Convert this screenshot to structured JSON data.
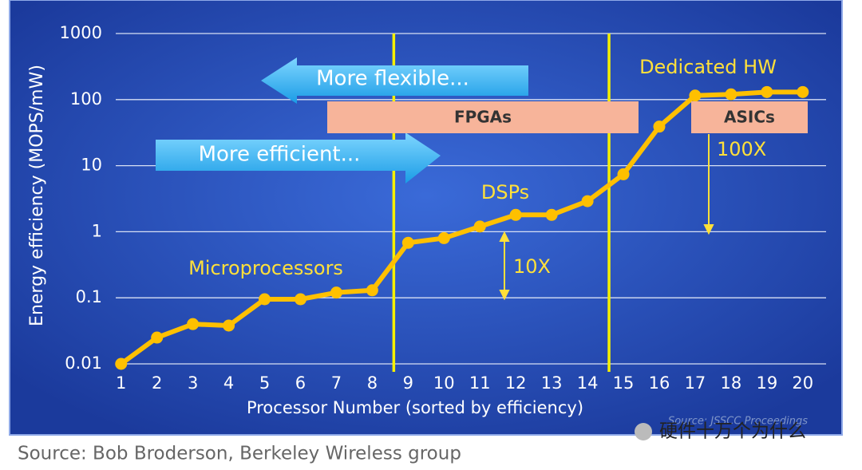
{
  "chart_data": {
    "type": "line",
    "y_label": "Energy efficiency (MOPS/mW)",
    "x_label": "Processor Number (sorted by efficiency)",
    "x": [
      1,
      2,
      3,
      4,
      5,
      6,
      7,
      8,
      9,
      10,
      11,
      12,
      13,
      14,
      15,
      16,
      17,
      18,
      19,
      20
    ],
    "values": [
      0.01,
      0.025,
      0.04,
      0.038,
      0.095,
      0.095,
      0.12,
      0.13,
      0.68,
      0.8,
      1.2,
      1.8,
      1.8,
      2.9,
      7.4,
      39,
      115,
      120,
      130,
      130
    ],
    "color": "#ffc000",
    "xlim": [
      0.85,
      20.65
    ],
    "xticks": [
      1,
      2,
      3,
      4,
      5,
      6,
      7,
      8,
      9,
      10,
      11,
      12,
      13,
      14,
      15,
      16,
      17,
      18,
      19,
      20
    ],
    "ylim": [
      0.01,
      1000
    ],
    "yticks": [
      0.01,
      0.1,
      1,
      10,
      100,
      1000
    ],
    "log_y": true,
    "grid": true,
    "dividers": [
      8.6,
      14.6
    ],
    "annotations": {
      "flexible": "More flexible...",
      "efficient": "More efficient...",
      "fpgas": "FPGAs",
      "asics": "ASICs",
      "dedicated": "Dedicated HW",
      "dsps": "DSPs",
      "micro": "Microprocessors",
      "ten": "10X",
      "hundred": "100X",
      "slide_source": "Source: JSSCC Proceedings"
    }
  },
  "footnote": "Source: Bob Broderson, Berkeley Wireless group",
  "watermark": "硬件十万个为什么"
}
